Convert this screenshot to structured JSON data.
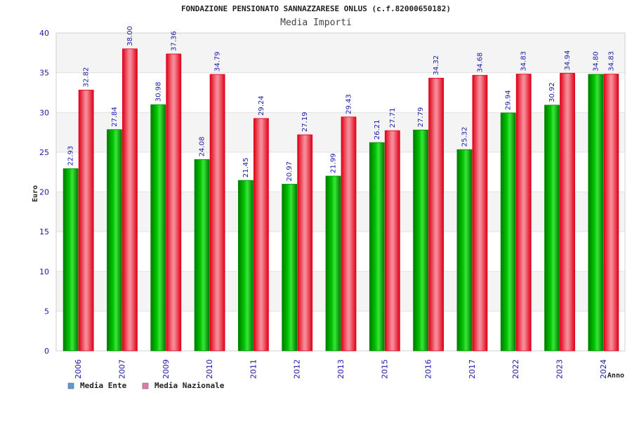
{
  "chart_data": {
    "type": "bar",
    "title": "FONDAZIONE PENSIONATO SANNAZZARESE ONLUS (c.f.82000650182)",
    "subtitle": "Media Importi",
    "xlabel": "Anno",
    "ylabel": "Euro",
    "ylim": [
      0,
      40
    ],
    "yticks": [
      0,
      5,
      10,
      15,
      20,
      25,
      30,
      35,
      40
    ],
    "grid": true,
    "legend_position": "bottom-left",
    "categories": [
      "2006",
      "2007",
      "2009",
      "2010",
      "2011",
      "2012",
      "2013",
      "2015",
      "2016",
      "2017",
      "2022",
      "2023",
      "2024"
    ],
    "series": [
      {
        "name": "Media Ente",
        "color": "#00c000",
        "legend_color": "#5b9bd5",
        "values": [
          22.93,
          27.84,
          30.98,
          24.08,
          21.45,
          20.97,
          21.99,
          26.21,
          27.79,
          25.32,
          29.94,
          30.92,
          34.8
        ],
        "labels": [
          "22.93",
          "27.84",
          "30.98",
          "24.08",
          "21.45",
          "20.97",
          "21.99",
          "26.21",
          "27.79",
          "25.32",
          "29.94",
          "30.92",
          "34.80"
        ]
      },
      {
        "name": "Media Nazionale",
        "color": "#ff0020",
        "legend_color": "#e07aa6",
        "values": [
          32.82,
          38.0,
          37.36,
          34.79,
          29.24,
          27.19,
          29.43,
          27.71,
          34.32,
          34.68,
          34.83,
          34.94,
          34.83
        ],
        "labels": [
          "32.82",
          "38.00",
          "37.36",
          "34.79",
          "29.24",
          "27.19",
          "29.43",
          "27.71",
          "34.32",
          "34.68",
          "34.83",
          "34.94",
          "34.83"
        ]
      }
    ]
  }
}
